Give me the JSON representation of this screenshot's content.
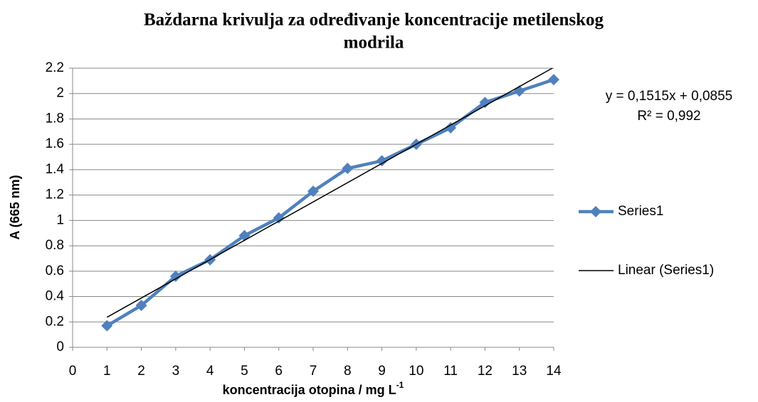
{
  "chart_data": {
    "type": "line",
    "title": [
      "Baždarna krivulja za određivanje koncentracije metilenskog",
      "modrila"
    ],
    "x_label": "koncentracija otopina / mg L",
    "x_label_sup": "-1",
    "y_label": "A (665 nm)",
    "x": [
      1,
      2,
      3,
      4,
      5,
      6,
      7,
      8,
      9,
      10,
      11,
      12,
      13,
      14
    ],
    "series": [
      {
        "name": "Series1",
        "color": "#4f81bd",
        "values": [
          0.17,
          0.33,
          0.56,
          0.69,
          0.88,
          1.02,
          1.23,
          1.41,
          1.47,
          1.6,
          1.73,
          1.93,
          2.02,
          2.11
        ]
      }
    ],
    "trendline": {
      "name": "Linear (Series1)",
      "color": "#000000",
      "slope": 0.1515,
      "intercept": 0.0855,
      "equation": "y = 0,1515x + 0,0855",
      "r2": "R² = 0,992"
    },
    "xlim": [
      0,
      14
    ],
    "xticks": [
      0,
      1,
      2,
      3,
      4,
      5,
      6,
      7,
      8,
      9,
      10,
      11,
      12,
      13,
      14
    ],
    "ylim": [
      0,
      2.2
    ],
    "yticks": [
      0,
      0.2,
      0.4,
      0.6,
      0.8,
      1,
      1.2,
      1.4,
      1.6,
      1.8,
      2,
      2.2
    ],
    "grid": true,
    "legend": "right"
  }
}
